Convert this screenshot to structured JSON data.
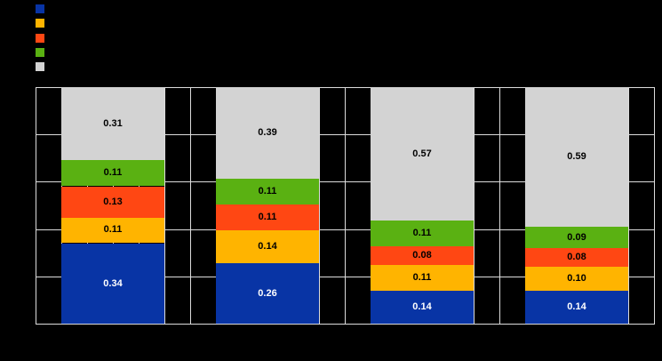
{
  "background_color": "#000000",
  "legend": {
    "position": "top-left",
    "items": [
      {
        "label": "",
        "color": "#0834A5",
        "name": "blue"
      },
      {
        "label": "",
        "color": "#FFB400",
        "name": "amber"
      },
      {
        "label": "",
        "color": "#FF4713",
        "name": "red-orange"
      },
      {
        "label": "",
        "color": "#5AB112",
        "name": "green"
      },
      {
        "label": "",
        "color": "#D3D3D3",
        "name": "gray"
      }
    ]
  },
  "chart_data": {
    "type": "bar",
    "stacked": true,
    "orientation": "vertical",
    "categories": [
      "",
      "",
      "",
      ""
    ],
    "series": [
      {
        "name": "",
        "color": "#0834A5",
        "label_color": "#FFFFFF",
        "values": [
          0.34,
          0.26,
          0.14,
          0.14
        ]
      },
      {
        "name": "",
        "color": "#FFB400",
        "label_color": "#000000",
        "values": [
          0.11,
          0.14,
          0.11,
          0.1
        ]
      },
      {
        "name": "",
        "color": "#FF4713",
        "label_color": "#000000",
        "values": [
          0.13,
          0.11,
          0.08,
          0.08
        ]
      },
      {
        "name": "",
        "color": "#5AB112",
        "label_color": "#000000",
        "values": [
          0.11,
          0.11,
          0.11,
          0.09
        ]
      },
      {
        "name": "",
        "color": "#D3D3D3",
        "label_color": "#000000",
        "values": [
          0.31,
          0.39,
          0.57,
          0.59
        ]
      }
    ],
    "data_labels": {
      "visible": true,
      "format": "0.00"
    },
    "ylim": [
      0,
      1
    ],
    "y_gridline_count": 6,
    "x_gridline_count": 25,
    "gridline_color": "#DCDCDC",
    "plot_border": true,
    "legend_position": "top-left"
  }
}
